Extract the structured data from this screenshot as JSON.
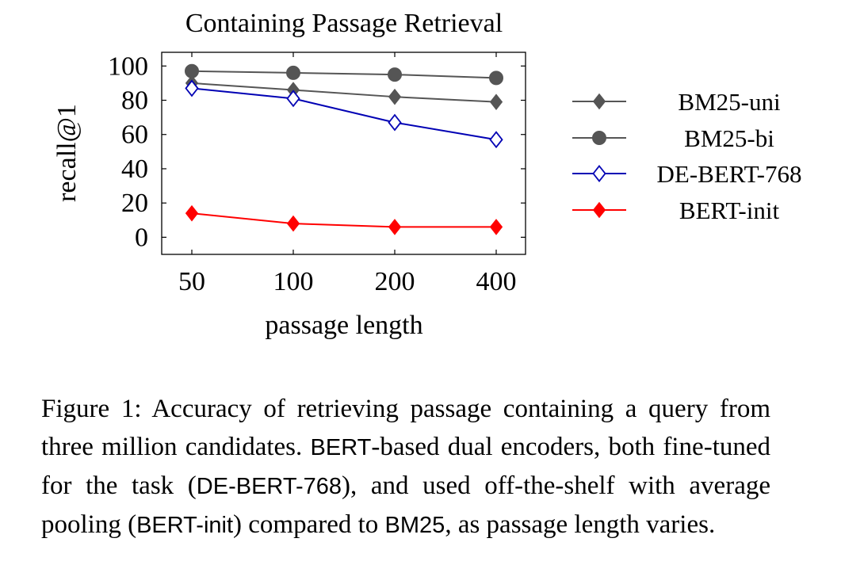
{
  "chart_data": {
    "type": "line",
    "title": "Containing Passage Retrieval",
    "xlabel": "passage length",
    "ylabel": "recall@1",
    "categories": [
      "50",
      "100",
      "200",
      "400"
    ],
    "yticks": [
      "0",
      "20",
      "40",
      "60",
      "80",
      "100"
    ],
    "ylim": [
      -10,
      108
    ],
    "grid": false,
    "legend_position": "right",
    "series": [
      {
        "name": "BM25-uni",
        "values": [
          90,
          86,
          82,
          79
        ],
        "color": "#555555",
        "marker": "diamond-filled"
      },
      {
        "name": "BM25-bi",
        "values": [
          97,
          96,
          95,
          93
        ],
        "color": "#555555",
        "marker": "circle-filled"
      },
      {
        "name": "DE-BERT-768",
        "values": [
          87,
          81,
          67,
          57
        ],
        "color": "#0000b4",
        "marker": "diamond-open"
      },
      {
        "name": "BERT-init",
        "values": [
          14,
          8,
          6,
          6
        ],
        "color": "#ff0000",
        "marker": "diamond-filled"
      }
    ]
  },
  "caption": {
    "label": "Figure 1:",
    "t1": "Accuracy of retrieving passage containing a query from three million candidates.",
    "bert": "BERT",
    "t2": "-based dual encoders, both fine-tuned for the task (",
    "debert": "DE-BERT-768",
    "t3": "), and used off-the-shelf with average pooling (",
    "bertinit": "BERT-init",
    "t4": ") compared to",
    "bm25": "BM25",
    "t5": ", as passage length varies."
  }
}
